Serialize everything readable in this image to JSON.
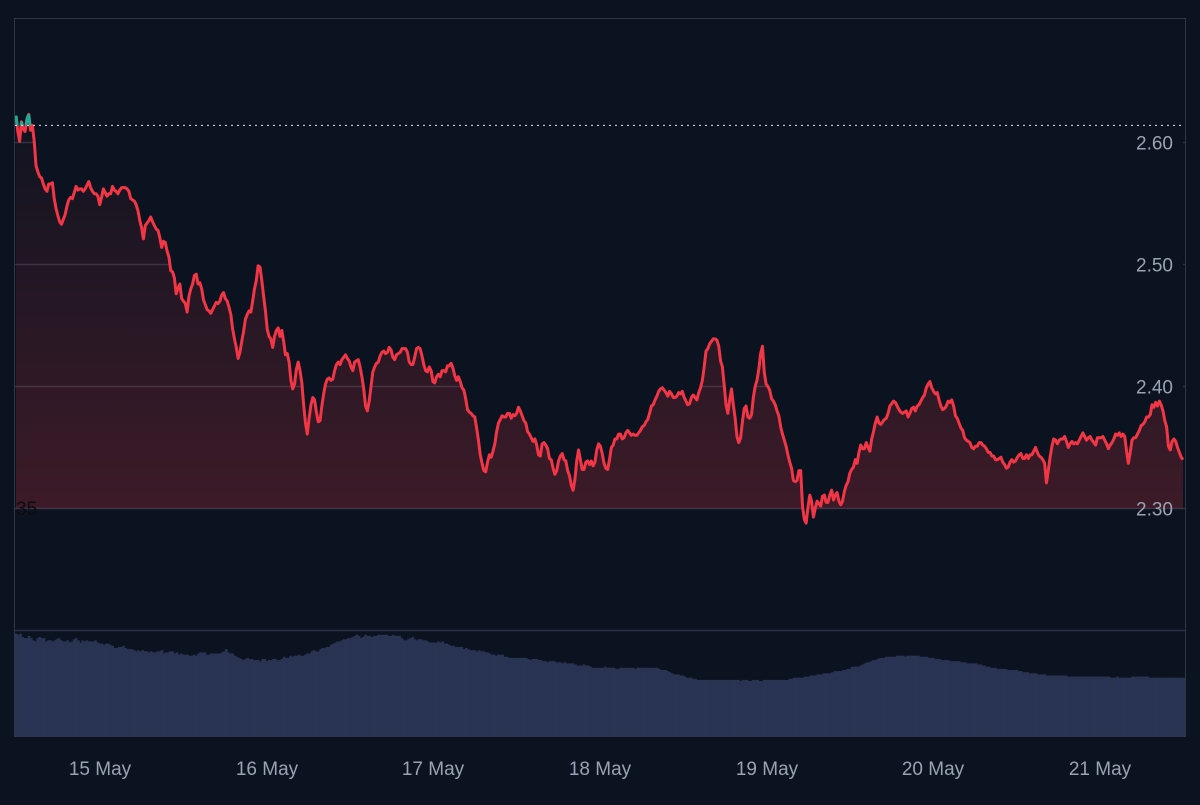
{
  "chart_data": {
    "type": "area",
    "series": [
      {
        "y": [
          2.622,
          2.609,
          2.601,
          2.617,
          2.611,
          2.609,
          2.619,
          2.623,
          2.61,
          2.614,
          2.601,
          2.581,
          2.576,
          2.572,
          2.571,
          2.566,
          2.562,
          2.56,
          2.566,
          2.566,
          2.567,
          2.554,
          2.546,
          2.54,
          2.535,
          2.533,
          2.537,
          2.541,
          2.548,
          2.553,
          2.555,
          2.554,
          2.559,
          2.564,
          2.561,
          2.562,
          2.562,
          2.56,
          2.562,
          2.565,
          2.568,
          2.563,
          2.56,
          2.558,
          2.558,
          2.556,
          2.549,
          2.555,
          2.562,
          2.559,
          2.556,
          2.558,
          2.558,
          2.564,
          2.561,
          2.56,
          2.558,
          2.561,
          2.563,
          2.563,
          2.563,
          2.562,
          2.56,
          2.554,
          2.553,
          2.552,
          2.549,
          2.544,
          2.536,
          2.53,
          2.521,
          2.532,
          2.534,
          2.536,
          2.539,
          2.535,
          2.532,
          2.529,
          2.528,
          2.522,
          2.514,
          2.519,
          2.518,
          2.511,
          2.506,
          2.495,
          2.494,
          2.489,
          2.476,
          2.481,
          2.484,
          2.472,
          2.47,
          2.468,
          2.461,
          2.474,
          2.48,
          2.484,
          2.491,
          2.492,
          2.484,
          2.485,
          2.48,
          2.471,
          2.467,
          2.463,
          2.462,
          2.46,
          2.463,
          2.466,
          2.469,
          2.468,
          2.47,
          2.475,
          2.477,
          2.472,
          2.47,
          2.465,
          2.459,
          2.447,
          2.439,
          2.432,
          2.423,
          2.428,
          2.437,
          2.445,
          2.455,
          2.459,
          2.462,
          2.461,
          2.47,
          2.48,
          2.487,
          2.499,
          2.498,
          2.487,
          2.474,
          2.462,
          2.447,
          2.441,
          2.439,
          2.432,
          2.441,
          2.446,
          2.448,
          2.441,
          2.446,
          2.437,
          2.426,
          2.427,
          2.42,
          2.405,
          2.398,
          2.402,
          2.414,
          2.42,
          2.413,
          2.403,
          2.385,
          2.37,
          2.361,
          2.374,
          2.385,
          2.391,
          2.389,
          2.379,
          2.371,
          2.372,
          2.384,
          2.394,
          2.402,
          2.406,
          2.407,
          2.405,
          2.406,
          2.413,
          2.418,
          2.42,
          2.418,
          2.422,
          2.424,
          2.426,
          2.423,
          2.421,
          2.416,
          2.413,
          2.42,
          2.421,
          2.422,
          2.416,
          2.408,
          2.398,
          2.384,
          2.38,
          2.388,
          2.4,
          2.412,
          2.416,
          2.419,
          2.42,
          2.425,
          2.428,
          2.429,
          2.427,
          2.428,
          2.432,
          2.43,
          2.424,
          2.422,
          2.426,
          2.427,
          2.428,
          2.431,
          2.431,
          2.431,
          2.428,
          2.42,
          2.418,
          2.418,
          2.424,
          2.431,
          2.432,
          2.431,
          2.425,
          2.418,
          2.413,
          2.412,
          2.416,
          2.413,
          2.404,
          2.403,
          2.408,
          2.41,
          2.408,
          2.413,
          2.413,
          2.412,
          2.417,
          2.417,
          2.419,
          2.415,
          2.409,
          2.405,
          2.408,
          2.404,
          2.399,
          2.397,
          2.39,
          2.381,
          2.379,
          2.378,
          2.376,
          2.375,
          2.366,
          2.356,
          2.344,
          2.337,
          2.331,
          2.33,
          2.338,
          2.344,
          2.342,
          2.347,
          2.353,
          2.363,
          2.37,
          2.373,
          2.376,
          2.375,
          2.375,
          2.378,
          2.378,
          2.374,
          2.377,
          2.376,
          2.378,
          2.383,
          2.38,
          2.376,
          2.372,
          2.37,
          2.363,
          2.361,
          2.358,
          2.355,
          2.357,
          2.352,
          2.344,
          2.343,
          2.353,
          2.354,
          2.352,
          2.349,
          2.341,
          2.34,
          2.333,
          2.328,
          2.331,
          2.339,
          2.343,
          2.345,
          2.34,
          2.339,
          2.331,
          2.327,
          2.319,
          2.315,
          2.324,
          2.339,
          2.348,
          2.34,
          2.332,
          2.332,
          2.338,
          2.339,
          2.336,
          2.339,
          2.335,
          2.338,
          2.348,
          2.353,
          2.351,
          2.345,
          2.337,
          2.333,
          2.332,
          2.34,
          2.35,
          2.352,
          2.357,
          2.357,
          2.361,
          2.361,
          2.357,
          2.358,
          2.362,
          2.364,
          2.362,
          2.36,
          2.361,
          2.36,
          2.36,
          2.362,
          2.364,
          2.367,
          2.368,
          2.371,
          2.373,
          2.378,
          2.384,
          2.385,
          2.389,
          2.392,
          2.396,
          2.398,
          2.399,
          2.397,
          2.395,
          2.392,
          2.396,
          2.394,
          2.391,
          2.391,
          2.392,
          2.395,
          2.394,
          2.396,
          2.391,
          2.388,
          2.385,
          2.386,
          2.391,
          2.393,
          2.391,
          2.389,
          2.395,
          2.399,
          2.405,
          2.416,
          2.429,
          2.431,
          2.435,
          2.437,
          2.439,
          2.439,
          2.438,
          2.433,
          2.421,
          2.416,
          2.401,
          2.385,
          2.378,
          2.389,
          2.398,
          2.385,
          2.374,
          2.359,
          2.354,
          2.358,
          2.371,
          2.382,
          2.384,
          2.375,
          2.374,
          2.377,
          2.391,
          2.4,
          2.405,
          2.414,
          2.427,
          2.433,
          2.412,
          2.402,
          2.4,
          2.397,
          2.39,
          2.388,
          2.385,
          2.38,
          2.376,
          2.367,
          2.361,
          2.356,
          2.351,
          2.344,
          2.338,
          2.333,
          2.323,
          2.322,
          2.323,
          2.331,
          2.331,
          2.302,
          2.291,
          2.288,
          2.301,
          2.311,
          2.306,
          2.293,
          2.3,
          2.306,
          2.304,
          2.302,
          2.31,
          2.311,
          2.305,
          2.305,
          2.311,
          2.315,
          2.307,
          2.311,
          2.313,
          2.306,
          2.303,
          2.306,
          2.314,
          2.319,
          2.322,
          2.329,
          2.332,
          2.334,
          2.34,
          2.337,
          2.346,
          2.352,
          2.349,
          2.349,
          2.354,
          2.35,
          2.347,
          2.357,
          2.363,
          2.37,
          2.375,
          2.37,
          2.369,
          2.371,
          2.373,
          2.374,
          2.378,
          2.384,
          2.386,
          2.388,
          2.387,
          2.384,
          2.381,
          2.379,
          2.378,
          2.379,
          2.38,
          2.375,
          2.378,
          2.382,
          2.383,
          2.38,
          2.384,
          2.385,
          2.388,
          2.391,
          2.393,
          2.399,
          2.402,
          2.404,
          2.399,
          2.396,
          2.394,
          2.395,
          2.389,
          2.384,
          2.381,
          2.382,
          2.384,
          2.388,
          2.387,
          2.389,
          2.384,
          2.376,
          2.374,
          2.37,
          2.366,
          2.364,
          2.358,
          2.356,
          2.355,
          2.354,
          2.35,
          2.349,
          2.351,
          2.351,
          2.354,
          2.354,
          2.352,
          2.351,
          2.349,
          2.346,
          2.346,
          2.343,
          2.343,
          2.34,
          2.34,
          2.341,
          2.342,
          2.338,
          2.336,
          2.333,
          2.334,
          2.338,
          2.34,
          2.338,
          2.339,
          2.342,
          2.344,
          2.345,
          2.341,
          2.341,
          2.344,
          2.341,
          2.344,
          2.344,
          2.347,
          2.35,
          2.346,
          2.343,
          2.342,
          2.34,
          2.337,
          2.321,
          2.331,
          2.342,
          2.351,
          2.357,
          2.356,
          2.353,
          2.356,
          2.357,
          2.357,
          2.359,
          2.355,
          2.35,
          2.353,
          2.355,
          2.353,
          2.354,
          2.353,
          2.356,
          2.359,
          2.362,
          2.359,
          2.356,
          2.358,
          2.359,
          2.356,
          2.354,
          2.352,
          2.358,
          2.358,
          2.358,
          2.359,
          2.356,
          2.353,
          2.349,
          2.352,
          2.354,
          2.357,
          2.361,
          2.36,
          2.362,
          2.359,
          2.361,
          2.359,
          2.347,
          2.337,
          2.346,
          2.356,
          2.358,
          2.358,
          2.361,
          2.364,
          2.368,
          2.369,
          2.371,
          2.375,
          2.375,
          2.377,
          2.385,
          2.383,
          2.387,
          2.384,
          2.388,
          2.385,
          2.38,
          2.372,
          2.367,
          2.351,
          2.348,
          2.355,
          2.357,
          2.355,
          2.35,
          2.346,
          2.342,
          2.34
        ]
      }
    ],
    "x_domain": [
      "14 May",
      "21 May"
    ],
    "x_ticks": [
      "15 May",
      "16 May",
      "17 May",
      "18 May",
      "19 May",
      "20 May",
      "21 May"
    ],
    "y_ticks": [
      "2.30",
      "2.40",
      "2.50",
      "2.60"
    ],
    "ylim": [
      2.2,
      2.7
    ],
    "reference_line": 2.614,
    "stray_label": "35",
    "colors": {
      "background": "#0c1320",
      "line_down": "#f23645",
      "line_up": "#22ab94",
      "fill_down": "#f23645",
      "volume": "#293352",
      "grid": "#2a3344",
      "tick_text": "#9aa3b2"
    },
    "volume": [
      0.93,
      0.92,
      0.93,
      0.9,
      0.89,
      0.89,
      0.91,
      0.89,
      0.87,
      0.86,
      0.89,
      0.9,
      0.89,
      0.89,
      0.86,
      0.87,
      0.87,
      0.86,
      0.87,
      0.88,
      0.89,
      0.87,
      0.86,
      0.86,
      0.87,
      0.85,
      0.86,
      0.88,
      0.89,
      0.87,
      0.85,
      0.87,
      0.86,
      0.87,
      0.86,
      0.86,
      0.86,
      0.87,
      0.85,
      0.84,
      0.84,
      0.83,
      0.84,
      0.84,
      0.83,
      0.82,
      0.8,
      0.8,
      0.81,
      0.81,
      0.82,
      0.8,
      0.79,
      0.79,
      0.79,
      0.78,
      0.77,
      0.78,
      0.77,
      0.78,
      0.77,
      0.77,
      0.76,
      0.77,
      0.76,
      0.76,
      0.77,
      0.77,
      0.78,
      0.75,
      0.76,
      0.76,
      0.77,
      0.77,
      0.75,
      0.76,
      0.74,
      0.75,
      0.74,
      0.74,
      0.74,
      0.73,
      0.73,
      0.74,
      0.73,
      0.75,
      0.76,
      0.76,
      0.76,
      0.74,
      0.74,
      0.75,
      0.75,
      0.75,
      0.75,
      0.75,
      0.76,
      0.77,
      0.79,
      0.76,
      0.75,
      0.75,
      0.73,
      0.72,
      0.71,
      0.7,
      0.69,
      0.7,
      0.71,
      0.7,
      0.7,
      0.69,
      0.69,
      0.69,
      0.68,
      0.7,
      0.7,
      0.68,
      0.69,
      0.69,
      0.7,
      0.7,
      0.69,
      0.69,
      0.7,
      0.72,
      0.71,
      0.71,
      0.73,
      0.72,
      0.73,
      0.73,
      0.74,
      0.73,
      0.73,
      0.74,
      0.75,
      0.75,
      0.77,
      0.78,
      0.77,
      0.77,
      0.79,
      0.8,
      0.8,
      0.81,
      0.81,
      0.83,
      0.84,
      0.85,
      0.86,
      0.86,
      0.87,
      0.88,
      0.88,
      0.89,
      0.89,
      0.9,
      0.91,
      0.92,
      0.91,
      0.89,
      0.9,
      0.92,
      0.91,
      0.91,
      0.9,
      0.91,
      0.91,
      0.92,
      0.92,
      0.92,
      0.92,
      0.92,
      0.91,
      0.91,
      0.92,
      0.91,
      0.91,
      0.91,
      0.89,
      0.87,
      0.87,
      0.88,
      0.89,
      0.9,
      0.88,
      0.87,
      0.88,
      0.88,
      0.87,
      0.87,
      0.86,
      0.85,
      0.85,
      0.85,
      0.85,
      0.86,
      0.85,
      0.86,
      0.84,
      0.84,
      0.83,
      0.82,
      0.82,
      0.81,
      0.81,
      0.81,
      0.81,
      0.79,
      0.8,
      0.79,
      0.78,
      0.78,
      0.78,
      0.77,
      0.78,
      0.77,
      0.77,
      0.76,
      0.76,
      0.75,
      0.74,
      0.74,
      0.73,
      0.74,
      0.74,
      0.74,
      0.72,
      0.72,
      0.71,
      0.71,
      0.71,
      0.71,
      0.71,
      0.71,
      0.71,
      0.71,
      0.71,
      0.7,
      0.69,
      0.7,
      0.7,
      0.7,
      0.69,
      0.69,
      0.68,
      0.68,
      0.67,
      0.68,
      0.68,
      0.68,
      0.67,
      0.67,
      0.67,
      0.66,
      0.67,
      0.66,
      0.66,
      0.66,
      0.66,
      0.65,
      0.64,
      0.64,
      0.64,
      0.65,
      0.64,
      0.64,
      0.63,
      0.62,
      0.62,
      0.62,
      0.62,
      0.62,
      0.62,
      0.63,
      0.62,
      0.62,
      0.62,
      0.62,
      0.61,
      0.61,
      0.62,
      0.62,
      0.62,
      0.62,
      0.62,
      0.62,
      0.62,
      0.61,
      0.62,
      0.62,
      0.62,
      0.62,
      0.62,
      0.62,
      0.62,
      0.62,
      0.62,
      0.62,
      0.61,
      0.6,
      0.6,
      0.6,
      0.59,
      0.58,
      0.57,
      0.56,
      0.56,
      0.56,
      0.55,
      0.55,
      0.54,
      0.53,
      0.53,
      0.53,
      0.52,
      0.52,
      0.51,
      0.51,
      0.51,
      0.51,
      0.51,
      0.51,
      0.51,
      0.51,
      0.51,
      0.51,
      0.51,
      0.51,
      0.51,
      0.51,
      0.51,
      0.51,
      0.51,
      0.51,
      0.51,
      0.51,
      0.5,
      0.51,
      0.51,
      0.51,
      0.5,
      0.5,
      0.51,
      0.51,
      0.51,
      0.5,
      0.5,
      0.51,
      0.51,
      0.51,
      0.51,
      0.51,
      0.51,
      0.51,
      0.51,
      0.51,
      0.51,
      0.51,
      0.51,
      0.52,
      0.52,
      0.53,
      0.53,
      0.53,
      0.53,
      0.53,
      0.54,
      0.54,
      0.54,
      0.55,
      0.55,
      0.55,
      0.56,
      0.56,
      0.56,
      0.57,
      0.57,
      0.57,
      0.57,
      0.58,
      0.59,
      0.59,
      0.59,
      0.59,
      0.6,
      0.6,
      0.61,
      0.61,
      0.63,
      0.63,
      0.63,
      0.63,
      0.64,
      0.65,
      0.66,
      0.67,
      0.67,
      0.68,
      0.69,
      0.69,
      0.7,
      0.71,
      0.71,
      0.71,
      0.72,
      0.72,
      0.72,
      0.72,
      0.72,
      0.73,
      0.73,
      0.73,
      0.73,
      0.72,
      0.73,
      0.73,
      0.73,
      0.73,
      0.73,
      0.73,
      0.72,
      0.72,
      0.72,
      0.72,
      0.71,
      0.71,
      0.71,
      0.7,
      0.7,
      0.7,
      0.69,
      0.69,
      0.69,
      0.69,
      0.68,
      0.68,
      0.68,
      0.68,
      0.68,
      0.67,
      0.67,
      0.67,
      0.66,
      0.66,
      0.66,
      0.66,
      0.66,
      0.65,
      0.65,
      0.64,
      0.64,
      0.63,
      0.63,
      0.62,
      0.62,
      0.62,
      0.61,
      0.61,
      0.61,
      0.61,
      0.61,
      0.6,
      0.6,
      0.6,
      0.6,
      0.6,
      0.59,
      0.59,
      0.58,
      0.58,
      0.58,
      0.57,
      0.57,
      0.57,
      0.57,
      0.56,
      0.56,
      0.56,
      0.56,
      0.55,
      0.55,
      0.55,
      0.55,
      0.55,
      0.55,
      0.55,
      0.55,
      0.55,
      0.55,
      0.54,
      0.54,
      0.54,
      0.54,
      0.54,
      0.54,
      0.54,
      0.54,
      0.54,
      0.54,
      0.54,
      0.54,
      0.54,
      0.54,
      0.54,
      0.54,
      0.54,
      0.54,
      0.54,
      0.54,
      0.53,
      0.53,
      0.53,
      0.54,
      0.53,
      0.53,
      0.53,
      0.53,
      0.53,
      0.53,
      0.54,
      0.54,
      0.54,
      0.54,
      0.54,
      0.54,
      0.54,
      0.54,
      0.53,
      0.53,
      0.53,
      0.53,
      0.53,
      0.53,
      0.53,
      0.53,
      0.53,
      0.53,
      0.53,
      0.53,
      0.53,
      0.53,
      0.53,
      0.53,
      0.53
    ]
  }
}
